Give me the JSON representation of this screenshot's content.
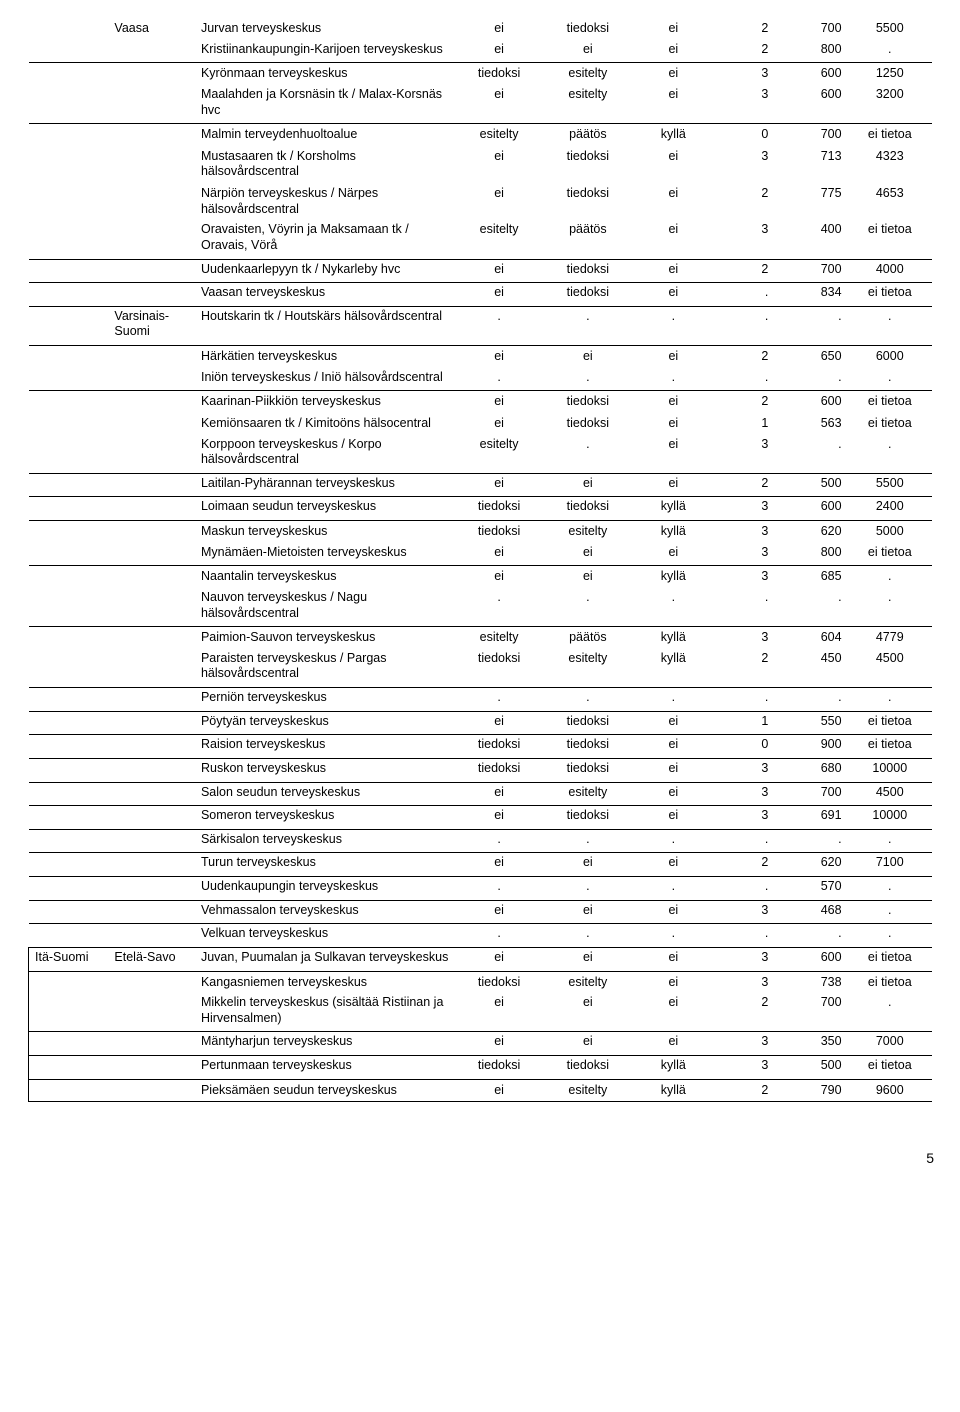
{
  "cols": [
    "region",
    "sub",
    "name",
    "d1",
    "d2",
    "d3",
    "d4",
    "d5",
    "d6"
  ],
  "numeric_cols": [
    "d4",
    "d5"
  ],
  "center_cols": [
    "d1",
    "d2",
    "d3",
    "d6"
  ],
  "rows": [
    {
      "region": "",
      "sub": "Vaasa",
      "name": "Jurvan terveyskeskus",
      "d1": "ei",
      "d2": "tiedoksi",
      "d3": "ei",
      "d4": "2",
      "d5": "700",
      "d6": "5500"
    },
    {
      "name": "Kristiinankaupungin-Karijoen terveyskeskus",
      "d1": "ei",
      "d2": "ei",
      "d3": "ei",
      "d4": "2",
      "d5": "800",
      "d6": ".",
      "sep": true
    },
    {
      "name": "Kyrönmaan terveyskeskus",
      "d1": "tiedoksi",
      "d2": "esitelty",
      "d3": "ei",
      "d4": "3",
      "d5": "600",
      "d6": "1250"
    },
    {
      "name": "Maalahden ja Korsnäsin tk / Malax-Korsnäs hvc",
      "d1": "ei",
      "d2": "esitelty",
      "d3": "ei",
      "d4": "3",
      "d5": "600",
      "d6": "3200",
      "sep": true
    },
    {
      "name": "Malmin terveydenhuoltoalue",
      "d1": "esitelty",
      "d2": "päätös",
      "d3": "kyllä",
      "d4": "0",
      "d5": "700",
      "d6": "ei tietoa"
    },
    {
      "name": "Mustasaaren tk / Korsholms hälsovårdscentral",
      "d1": "ei",
      "d2": "tiedoksi",
      "d3": "ei",
      "d4": "3",
      "d5": "713",
      "d6": "4323"
    },
    {
      "name": "Närpiön terveyskeskus / Närpes hälsovårdscentral",
      "d1": "ei",
      "d2": "tiedoksi",
      "d3": "ei",
      "d4": "2",
      "d5": "775",
      "d6": "4653"
    },
    {
      "name": "Oravaisten, Vöyrin ja Maksamaan tk / Oravais, Vörå",
      "d1": "esitelty",
      "d2": "päätös",
      "d3": "ei",
      "d4": "3",
      "d5": "400",
      "d6": "ei tietoa",
      "sep": true
    },
    {
      "name": "Uudenkaarlepyyn tk / Nykarleby hvc",
      "d1": "ei",
      "d2": "tiedoksi",
      "d3": "ei",
      "d4": "2",
      "d5": "700",
      "d6": "4000",
      "sep": true
    },
    {
      "name": "Vaasan terveyskeskus",
      "d1": "ei",
      "d2": "tiedoksi",
      "d3": "ei",
      "d4": ".",
      "d5": "834",
      "d6": "ei tietoa",
      "sep": true,
      "lastOfRegionGroup": true
    },
    {
      "sub": "Varsinais-Suomi",
      "name": "Houtskarin tk / Houtskärs hälsovårdscentral",
      "d1": ".",
      "d2": ".",
      "d3": ".",
      "d4": ".",
      "d5": ".",
      "d6": ".",
      "sep": true
    },
    {
      "name": "Härkätien terveyskeskus",
      "d1": "ei",
      "d2": "ei",
      "d3": "ei",
      "d4": "2",
      "d5": "650",
      "d6": "6000"
    },
    {
      "name": "Iniön terveyskeskus / Iniö hälsovårdscentral",
      "d1": ".",
      "d2": ".",
      "d3": ".",
      "d4": ".",
      "d5": ".",
      "d6": ".",
      "sep": true
    },
    {
      "name": "Kaarinan-Piikkiön terveyskeskus",
      "d1": "ei",
      "d2": "tiedoksi",
      "d3": "ei",
      "d4": "2",
      "d5": "600",
      "d6": "ei tietoa"
    },
    {
      "name": "Kemiönsaaren tk / Kimitoöns hälsocentral",
      "d1": "ei",
      "d2": "tiedoksi",
      "d3": "ei",
      "d4": "1",
      "d5": "563",
      "d6": "ei tietoa"
    },
    {
      "name": "Korppoon terveyskeskus / Korpo hälsovårdscentral",
      "d1": "esitelty",
      "d2": ".",
      "d3": "ei",
      "d4": "3",
      "d5": ".",
      "d6": ".",
      "sep": true
    },
    {
      "name": "Laitilan-Pyhärannan terveyskeskus",
      "d1": "ei",
      "d2": "ei",
      "d3": "ei",
      "d4": "2",
      "d5": "500",
      "d6": "5500",
      "sep": true
    },
    {
      "name": "Loimaan seudun terveyskeskus",
      "d1": "tiedoksi",
      "d2": "tiedoksi",
      "d3": "kyllä",
      "d4": "3",
      "d5": "600",
      "d6": "2400",
      "sep": true
    },
    {
      "name": "Maskun terveyskeskus",
      "d1": "tiedoksi",
      "d2": "esitelty",
      "d3": "kyllä",
      "d4": "3",
      "d5": "620",
      "d6": "5000"
    },
    {
      "name": "Mynämäen-Mietoisten terveyskeskus",
      "d1": "ei",
      "d2": "ei",
      "d3": "ei",
      "d4": "3",
      "d5": "800",
      "d6": "ei tietoa",
      "sep": true
    },
    {
      "name": "Naantalin terveyskeskus",
      "d1": "ei",
      "d2": "ei",
      "d3": "kyllä",
      "d4": "3",
      "d5": "685",
      "d6": "."
    },
    {
      "name": "Nauvon terveyskeskus / Nagu hälsovårdscentral",
      "d1": ".",
      "d2": ".",
      "d3": ".",
      "d4": ".",
      "d5": ".",
      "d6": ".",
      "sep": true
    },
    {
      "name": "Paimion-Sauvon terveyskeskus",
      "d1": "esitelty",
      "d2": "päätös",
      "d3": "kyllä",
      "d4": "3",
      "d5": "604",
      "d6": "4779"
    },
    {
      "name": "Paraisten terveyskeskus / Pargas hälsovårdscentral",
      "d1": "tiedoksi",
      "d2": "esitelty",
      "d3": "kyllä",
      "d4": "2",
      "d5": "450",
      "d6": "4500",
      "sep": true
    },
    {
      "name": "Perniön terveyskeskus",
      "d1": ".",
      "d2": ".",
      "d3": ".",
      "d4": ".",
      "d5": ".",
      "d6": ".",
      "sep": true
    },
    {
      "name": "Pöytyän terveyskeskus",
      "d1": "ei",
      "d2": "tiedoksi",
      "d3": "ei",
      "d4": "1",
      "d5": "550",
      "d6": "ei tietoa",
      "sep": true
    },
    {
      "name": "Raision terveyskeskus",
      "d1": "tiedoksi",
      "d2": "tiedoksi",
      "d3": "ei",
      "d4": "0",
      "d5": "900",
      "d6": "ei tietoa",
      "sep": true
    },
    {
      "name": "Ruskon terveyskeskus",
      "d1": "tiedoksi",
      "d2": "tiedoksi",
      "d3": "ei",
      "d4": "3",
      "d5": "680",
      "d6": "10000",
      "sep": true
    },
    {
      "name": "Salon seudun terveyskeskus",
      "d1": "ei",
      "d2": "esitelty",
      "d3": "ei",
      "d4": "3",
      "d5": "700",
      "d6": "4500",
      "sep": true
    },
    {
      "name": "Someron terveyskeskus",
      "d1": "ei",
      "d2": "tiedoksi",
      "d3": "ei",
      "d4": "3",
      "d5": "691",
      "d6": "10000",
      "sep": true
    },
    {
      "name": "Särkisalon terveyskeskus",
      "d1": ".",
      "d2": ".",
      "d3": ".",
      "d4": ".",
      "d5": ".",
      "d6": ".",
      "sep": true
    },
    {
      "name": "Turun terveyskeskus",
      "d1": "ei",
      "d2": "ei",
      "d3": "ei",
      "d4": "2",
      "d5": "620",
      "d6": "7100",
      "sep": true
    },
    {
      "name": "Uudenkaupungin terveyskeskus",
      "d1": ".",
      "d2": ".",
      "d3": ".",
      "d4": ".",
      "d5": "570",
      "d6": ".",
      "sep": true
    },
    {
      "name": "Vehmassalon terveyskeskus",
      "d1": "ei",
      "d2": "ei",
      "d3": "ei",
      "d4": "3",
      "d5": "468",
      "d6": ".",
      "sep": true
    },
    {
      "name": "Velkuan terveyskeskus",
      "d1": ".",
      "d2": ".",
      "d3": ".",
      "d4": ".",
      "d5": ".",
      "d6": ".",
      "sep": true,
      "majorBottom": true
    },
    {
      "region": "Itä-Suomi",
      "sub": "Etelä-Savo",
      "name": "Juvan, Puumalan ja Sulkavan terveyskeskus",
      "d1": "ei",
      "d2": "ei",
      "d3": "ei",
      "d4": "3",
      "d5": "600",
      "d6": "ei tietoa",
      "sep": true,
      "majorLeft": true
    },
    {
      "name": "Kangasniemen terveyskeskus",
      "d1": "tiedoksi",
      "d2": "esitelty",
      "d3": "ei",
      "d4": "3",
      "d5": "738",
      "d6": "ei tietoa",
      "majorLeft": true
    },
    {
      "name": "Mikkelin terveyskeskus (sisältää Ristiinan ja Hirvensalmen)",
      "d1": "ei",
      "d2": "ei",
      "d3": "ei",
      "d4": "2",
      "d5": "700",
      "d6": ".",
      "sep": true,
      "majorLeft": true
    },
    {
      "name": "Mäntyharjun terveyskeskus",
      "d1": "ei",
      "d2": "ei",
      "d3": "ei",
      "d4": "3",
      "d5": "350",
      "d6": "7000",
      "sep": true,
      "majorLeft": true
    },
    {
      "name": "Pertunmaan terveyskeskus",
      "d1": "tiedoksi",
      "d2": "tiedoksi",
      "d3": "kyllä",
      "d4": "3",
      "d5": "500",
      "d6": "ei tietoa",
      "sep": true,
      "majorLeft": true
    },
    {
      "name": "Pieksämäen seudun terveyskeskus",
      "d1": "ei",
      "d2": "esitelty",
      "d3": "kyllä",
      "d4": "2",
      "d5": "790",
      "d6": "9600",
      "majorLeft": true,
      "majorBottom": true
    }
  ],
  "page_number": "5"
}
